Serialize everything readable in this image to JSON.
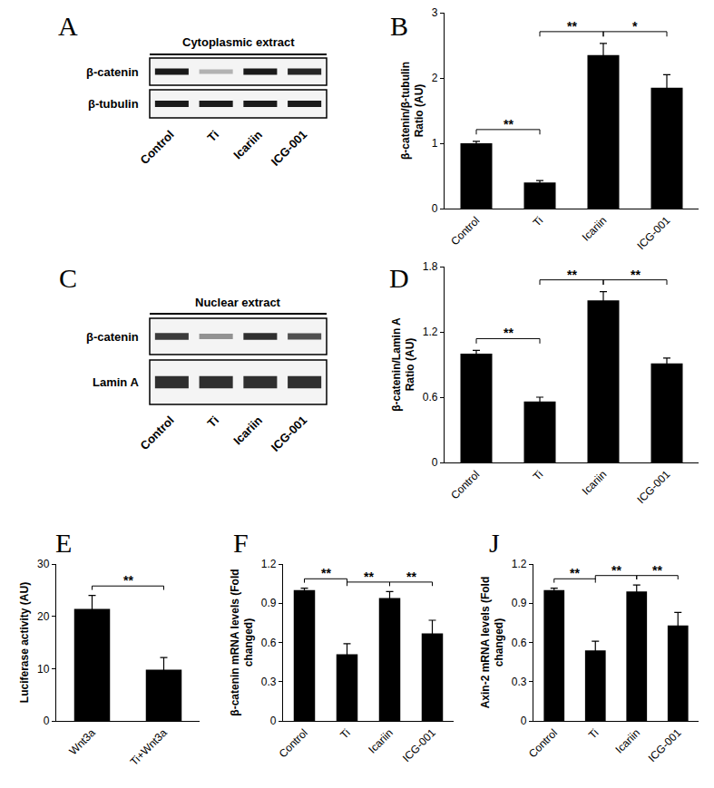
{
  "chart_data": [
    {
      "panel": "B",
      "type": "bar",
      "ylabel": [
        "β-catenin/β-tubulin",
        "Ratio (AU)"
      ],
      "categories": [
        "Control",
        "Ti",
        "Icariin",
        "ICG-001"
      ],
      "values": [
        1.0,
        0.4,
        2.35,
        1.85
      ],
      "errors": [
        0.03,
        0.03,
        0.18,
        0.2
      ],
      "color": "#000000",
      "ylim": [
        0,
        3
      ],
      "yticks": [
        0,
        1,
        2,
        3
      ],
      "grid": false,
      "significance": [
        {
          "between": [
            "Control",
            "Ti"
          ],
          "text": "**"
        },
        {
          "between": [
            "Ti",
            "Icariin"
          ],
          "text": "**"
        },
        {
          "between": [
            "Icariin",
            "ICG-001"
          ],
          "text": "*"
        }
      ]
    },
    {
      "panel": "D",
      "type": "bar",
      "ylabel": [
        "β-catenin/Lamin A",
        "Ratio (AU)"
      ],
      "categories": [
        "Control",
        "Ti",
        "Icariin",
        "ICG-001"
      ],
      "values": [
        1.0,
        0.56,
        1.49,
        0.91
      ],
      "errors": [
        0.03,
        0.04,
        0.08,
        0.05
      ],
      "color": "#000000",
      "ylim": [
        0,
        1.8
      ],
      "yticks": [
        0,
        0.6,
        1.2,
        1.8
      ],
      "grid": false,
      "significance": [
        {
          "between": [
            "Control",
            "Ti"
          ],
          "text": "**"
        },
        {
          "between": [
            "Ti",
            "Icariin"
          ],
          "text": "**"
        },
        {
          "between": [
            "Icariin",
            "ICG-001"
          ],
          "text": "**"
        }
      ]
    },
    {
      "panel": "E",
      "type": "bar",
      "ylabel": [
        "Luciferase activity (AU)"
      ],
      "categories": [
        "Wnt3a",
        "Ti+Wnt3a"
      ],
      "values": [
        21.4,
        9.8
      ],
      "errors": [
        2.6,
        2.3
      ],
      "color": "#000000",
      "ylim": [
        0,
        30
      ],
      "yticks": [
        0,
        10,
        20,
        30
      ],
      "grid": false,
      "significance": [
        {
          "between": [
            "Wnt3a",
            "Ti+Wnt3a"
          ],
          "text": "**"
        }
      ]
    },
    {
      "panel": "F",
      "type": "bar",
      "ylabel": [
        "β-catenin mRNA levels (Fold",
        "changed)"
      ],
      "categories": [
        "Control",
        "Ti",
        "Icariin",
        "ICG-001"
      ],
      "values": [
        1.0,
        0.51,
        0.94,
        0.67
      ],
      "errors": [
        0.015,
        0.08,
        0.05,
        0.1
      ],
      "color": "#000000",
      "ylim": [
        0,
        1.2
      ],
      "yticks": [
        0,
        0.3,
        0.6,
        0.9,
        1.2
      ],
      "grid": false,
      "significance": [
        {
          "between": [
            "Control",
            "Ti"
          ],
          "text": "**"
        },
        {
          "between": [
            "Ti",
            "Icariin"
          ],
          "text": "**"
        },
        {
          "between": [
            "Icariin",
            "ICG-001"
          ],
          "text": "**"
        }
      ]
    },
    {
      "panel": "J",
      "type": "bar",
      "ylabel": [
        "Axin-2 mRNA levels (Fold",
        "changed)"
      ],
      "categories": [
        "Control",
        "Ti",
        "Icariin",
        "ICG-001"
      ],
      "values": [
        1.0,
        0.54,
        0.99,
        0.73
      ],
      "errors": [
        0.015,
        0.07,
        0.05,
        0.1
      ],
      "color": "#000000",
      "ylim": [
        0,
        1.2
      ],
      "yticks": [
        0,
        0.3,
        0.6,
        0.9,
        1.2
      ],
      "grid": false,
      "significance": [
        {
          "between": [
            "Control",
            "Ti"
          ],
          "text": "**"
        },
        {
          "between": [
            "Ti",
            "Icariin"
          ],
          "text": "**"
        },
        {
          "between": [
            "Icariin",
            "ICG-001"
          ],
          "text": "**"
        }
      ]
    }
  ],
  "blots": [
    {
      "panel": "A",
      "title": "Cytoplasmic extract",
      "rows": [
        "β-catenin",
        "β-tubulin"
      ],
      "lanes": [
        "Control",
        "Ti",
        "Icariin",
        "ICG-001"
      ]
    },
    {
      "panel": "C",
      "title": "Nuclear extract",
      "rows": [
        "β-catenin",
        "Lamin A"
      ],
      "lanes": [
        "Control",
        "Ti",
        "Icariin",
        "ICG-001"
      ]
    }
  ]
}
